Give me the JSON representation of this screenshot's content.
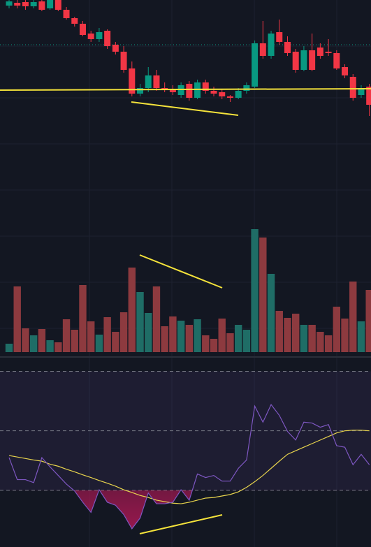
{
  "chart_data": {
    "type": "candlestick",
    "up_color": "#089981",
    "down_color": "#f23645",
    "volume_up_color": "#1f6d66",
    "volume_down_color": "#8d3a3f",
    "rsi_color": "#7e57c2",
    "rsi_ma_color": "#e8d44d",
    "oversold_color": "#c2185b",
    "open": [
      192,
      196,
      197,
      191,
      198,
      188,
      200,
      186,
      174,
      166,
      152,
      144,
      156,
      136,
      126,
      102,
      66,
      74,
      92,
      74,
      72,
      64,
      80,
      60,
      82,
      70,
      68,
      62,
      60,
      70,
      76,
      138,
      120,
      154,
      140,
      126,
      100,
      128,
      132,
      126,
      124,
      104,
      90,
      64,
      76
    ],
    "close": [
      198,
      192,
      191,
      197,
      186,
      200,
      186,
      174,
      166,
      150,
      144,
      154,
      134,
      126,
      100,
      66,
      74,
      92,
      74,
      72,
      68,
      78,
      60,
      82,
      70,
      66,
      62,
      60,
      70,
      78,
      138,
      120,
      152,
      140,
      124,
      100,
      128,
      100,
      120,
      124,
      102,
      92,
      60,
      74,
      50
    ],
    "high": [
      200,
      200,
      200,
      200,
      200,
      200,
      200,
      190,
      176,
      170,
      156,
      160,
      158,
      140,
      134,
      112,
      80,
      104,
      100,
      82,
      78,
      82,
      84,
      86,
      86,
      76,
      72,
      64,
      74,
      82,
      142,
      170,
      156,
      172,
      148,
      130,
      134,
      152,
      138,
      144,
      128,
      108,
      94,
      78,
      80
    ],
    "low": [
      188,
      188,
      186,
      188,
      184,
      186,
      184,
      172,
      162,
      148,
      140,
      140,
      130,
      122,
      96,
      62,
      62,
      68,
      70,
      68,
      64,
      60,
      56,
      58,
      66,
      62,
      58,
      54,
      58,
      66,
      74,
      116,
      116,
      136,
      120,
      96,
      98,
      98,
      116,
      120,
      100,
      88,
      56,
      60,
      34
    ],
    "volume": [
      12,
      94,
      34,
      24,
      33,
      17,
      14,
      47,
      32,
      96,
      44,
      25,
      50,
      29,
      57,
      121,
      86,
      56,
      94,
      37,
      51,
      45,
      39,
      47,
      24,
      19,
      48,
      27,
      39,
      32,
      176,
      164,
      112,
      59,
      49,
      55,
      39,
      39,
      29,
      24,
      65,
      48,
      101,
      44,
      89
    ],
    "rsi": [
      41,
      33.6,
      33.6,
      32.6,
      41,
      37.9,
      35,
      32.1,
      29.8,
      26,
      22.6,
      30.2,
      26,
      25,
      21.9,
      17.1,
      20.7,
      29.1,
      25.5,
      25.5,
      26,
      30.2,
      26.7,
      35.5,
      34.3,
      35,
      33.1,
      33.1,
      37.4,
      40.2,
      58.3,
      52.9,
      58.8,
      55.2,
      49.8,
      46.9,
      52.9,
      52.6,
      51.2,
      52.1,
      45,
      44.5,
      38.6,
      42.1,
      38.6
    ],
    "rsi_ma": [
      41.7,
      41.2,
      40.7,
      40.2,
      39.8,
      38.8,
      38.1,
      37.1,
      36.2,
      35.2,
      34.3,
      33.3,
      32.4,
      31.4,
      30.2,
      29.3,
      28.3,
      27.6,
      26.7,
      26.2,
      25.7,
      25.5,
      26,
      26.7,
      27.4,
      27.6,
      28.1,
      28.6,
      29.5,
      31,
      32.9,
      35,
      37.4,
      39.8,
      42.1,
      43.3,
      44.5,
      45.7,
      46.9,
      48.1,
      49.3,
      50,
      50.2,
      50.2,
      50
    ],
    "ylim": [
      30,
      200
    ],
    "volume_lim": [
      0,
      500
    ],
    "rsi_lim": [
      10.5,
      75.5
    ],
    "rsi_levels": [
      70,
      50,
      30
    ]
  }
}
